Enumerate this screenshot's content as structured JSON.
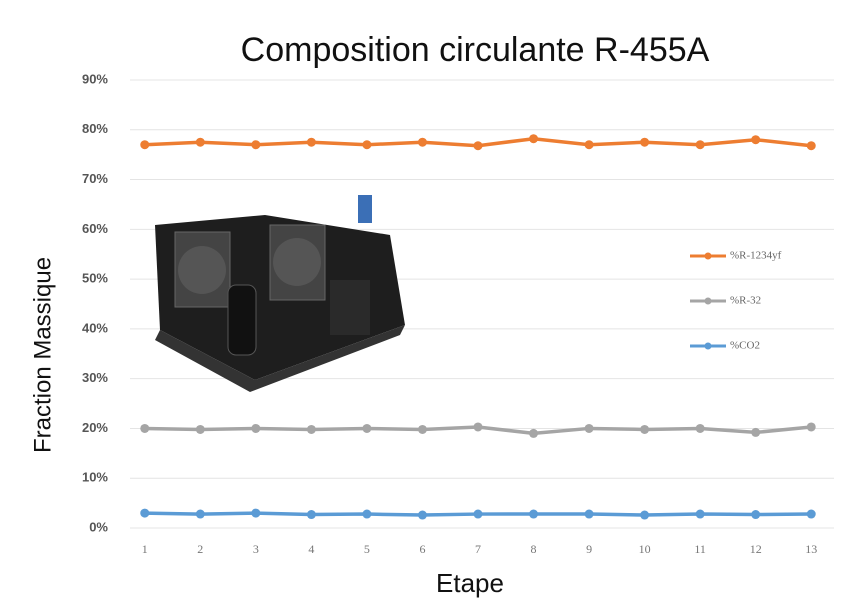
{
  "chart_data": {
    "type": "line",
    "title": "Composition circulante R-455A",
    "x_label": "Etape",
    "y_label": "Fraction Massique",
    "categories": [
      "1",
      "2",
      "3",
      "4",
      "5",
      "6",
      "7",
      "8",
      "9",
      "10",
      "11",
      "12",
      "13"
    ],
    "series": [
      {
        "name": "%R-1234yf",
        "color": "#ed7d31",
        "values": [
          77,
          77.5,
          77,
          77.5,
          77,
          77.5,
          76.8,
          78.2,
          77,
          77.5,
          77,
          78,
          76.8
        ]
      },
      {
        "name": "%R-32",
        "color": "#a5a5a5",
        "values": [
          20,
          19.8,
          20,
          19.8,
          20,
          19.8,
          20.3,
          19,
          20,
          19.8,
          20,
          19.2,
          20.3
        ]
      },
      {
        "name": "%CO2",
        "color": "#5b9bd5",
        "values": [
          3,
          2.8,
          3,
          2.7,
          2.8,
          2.6,
          2.8,
          2.8,
          2.8,
          2.6,
          2.8,
          2.7,
          2.8
        ]
      }
    ],
    "ylim": [
      0,
      90
    ],
    "yticks": [
      {
        "value": 0,
        "label": "0%"
      },
      {
        "value": 10,
        "label": "10%"
      },
      {
        "value": 20,
        "label": "20%"
      },
      {
        "value": 30,
        "label": "30%"
      },
      {
        "value": 40,
        "label": "40%"
      },
      {
        "value": 50,
        "label": "50%"
      },
      {
        "value": 60,
        "label": "60%"
      },
      {
        "value": 70,
        "label": "70%"
      },
      {
        "value": 80,
        "label": "80%"
      },
      {
        "value": 90,
        "label": "90%"
      }
    ],
    "grid": true,
    "legend": "right"
  }
}
